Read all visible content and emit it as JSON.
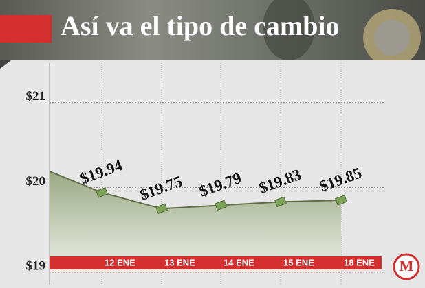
{
  "chart_data": {
    "type": "line",
    "title": "Así va el tipo de cambio",
    "logo": "M",
    "categories": [
      null,
      "12 ENE",
      "13 ENE",
      "14 ENE",
      "15 ENE",
      "18 ENE"
    ],
    "values": [
      20.19,
      19.94,
      19.75,
      19.79,
      19.83,
      19.85
    ],
    "value_labels": [
      null,
      "$19.94",
      "$19.75",
      "$19.79",
      "$19.83",
      "$19.85"
    ],
    "color": "#5f6e48",
    "ylim": [
      19,
      21.5
    ],
    "yticks": [
      {
        "value": 19,
        "label": "$19"
      },
      {
        "value": 20,
        "label": "$20"
      },
      {
        "value": 21,
        "label": "$21"
      }
    ],
    "grid": true
  }
}
